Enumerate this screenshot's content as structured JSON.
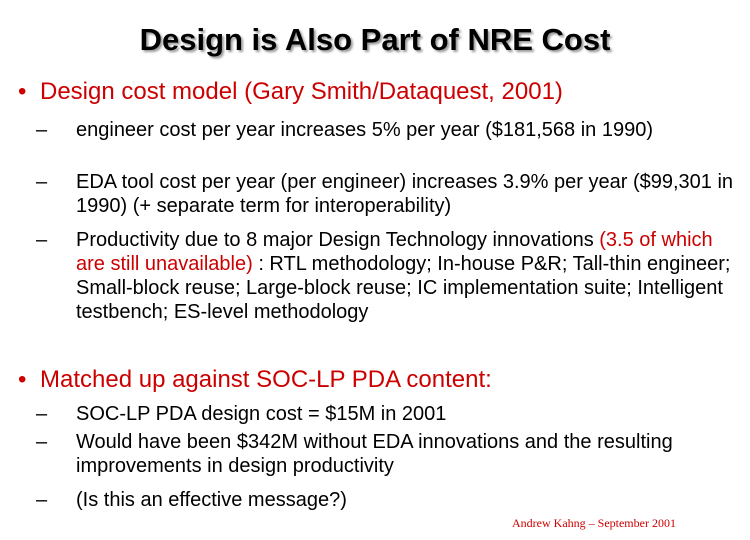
{
  "slide": {
    "title": "Design is Also Part of NRE Cost",
    "bullet1": {
      "marker": "•",
      "text": "Design cost model (Gary Smith/Dataquest, 2001)",
      "subs": [
        {
          "marker": "–",
          "text": "engineer cost per year increases 5% per year ($181,568 in 1990)"
        },
        {
          "marker": "–",
          "text": "EDA tool cost per year (per engineer) increases 3.9% per year ($99,301 in 1990)   (+ separate term for interoperability)"
        },
        {
          "marker": "–",
          "text_a": "Productivity due to 8 major Design Technology innovations ",
          "text_red": "(3.5 of which are still unavailable)",
          "text_b": " : RTL methodology; In-house P&R; Tall-thin engineer; Small-block reuse; Large-block reuse; IC implementation suite; Intelligent testbench; ES-level methodology"
        }
      ]
    },
    "bullet2": {
      "marker": "•",
      "text": "Matched up against SOC-LP PDA content:",
      "subs": [
        {
          "marker": "–",
          "text": "SOC-LP PDA design cost = $15M in 2001"
        },
        {
          "marker": "–",
          "text": "Would have been $342M without EDA innovations and the resulting improvements in design productivity"
        },
        {
          "marker": "–",
          "text": "(Is this an effective message?)"
        }
      ]
    },
    "footer": "Andrew Kahng – September 2001"
  },
  "colors": {
    "accent": "#cc0000",
    "text": "#000000",
    "background": "#ffffff"
  }
}
